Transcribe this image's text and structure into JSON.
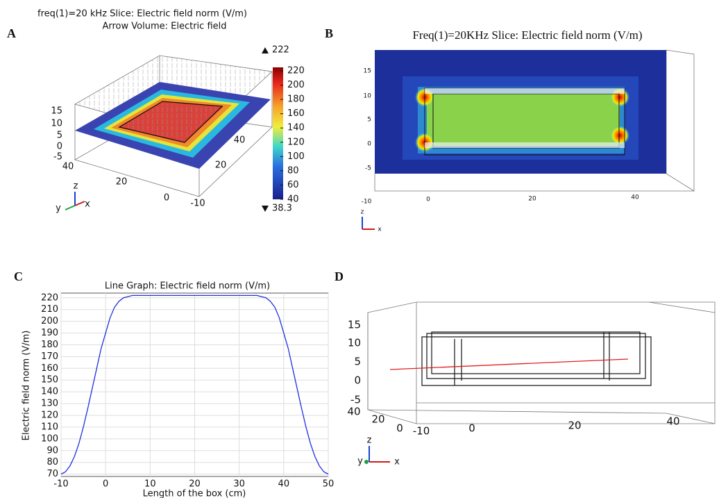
{
  "panels": [
    {
      "label": "A",
      "title": [
        "freq(1)=20 kHz   Slice: Electric field norm (V/m)",
        "Arrow Volume: Electric field"
      ],
      "colorbar": {
        "ticks": [
          220,
          200,
          180,
          160,
          140,
          120,
          100,
          80,
          60,
          40
        ],
        "max": 222,
        "min": 38.3
      },
      "z_ticks": [
        15,
        10,
        5,
        0,
        -5
      ],
      "y_ticks": [
        40,
        20,
        0,
        -10
      ],
      "x_ticks": [
        40,
        20
      ],
      "axes": [
        "z",
        "y",
        "x"
      ]
    },
    {
      "label": "B",
      "title": "Freq(1)=20KHz  Slice: Electric field norm (V/m)",
      "y_ticks": [
        15,
        10,
        5,
        0,
        -5
      ],
      "x_ticks": [
        -10,
        0,
        20,
        40
      ],
      "axes": [
        "z",
        "x"
      ]
    },
    {
      "label": "D",
      "z_ticks": [
        15,
        10,
        5,
        0,
        -5
      ],
      "y_ticks": [
        40,
        20,
        0
      ],
      "x_ticks": [
        -10,
        0,
        20,
        40
      ],
      "axes": [
        "z",
        "y",
        "x"
      ]
    }
  ],
  "chart_data": {
    "type": "line",
    "panel_label": "C",
    "title": "Line Graph: Electric field norm (V/m)",
    "x_label": "Length  of the box (cm)",
    "y_label": "Electric field norm (V/m)",
    "x": [
      -10,
      -9,
      -8,
      -7,
      -6,
      -5,
      -4,
      -3,
      -2,
      -1,
      0,
      1,
      2,
      3,
      4,
      5,
      6,
      10,
      20,
      30,
      34,
      35,
      36,
      37,
      38,
      39,
      40,
      41,
      42,
      43,
      44,
      45,
      46,
      47,
      48,
      49,
      50
    ],
    "values": [
      70,
      72,
      77,
      85,
      96,
      110,
      126,
      143,
      160,
      177,
      190,
      203,
      212,
      217,
      220,
      221,
      222,
      222,
      222,
      222,
      222,
      221,
      220,
      217,
      212,
      203,
      190,
      177,
      160,
      143,
      126,
      110,
      96,
      85,
      77,
      72,
      70
    ],
    "color": "#1f2fe0",
    "xlim": [
      -10,
      50
    ],
    "xticks": [
      -10,
      0,
      10,
      20,
      30,
      40,
      50
    ],
    "ylim": [
      68,
      224
    ],
    "yticks": [
      70,
      80,
      90,
      100,
      110,
      120,
      130,
      140,
      150,
      160,
      170,
      180,
      190,
      200,
      210,
      220
    ],
    "grid": true
  }
}
